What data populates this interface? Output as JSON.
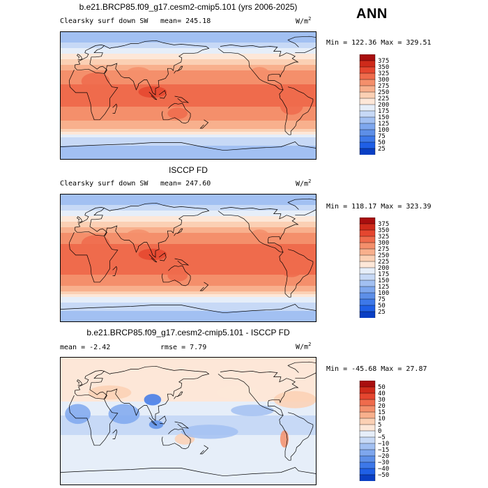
{
  "season_label": "ANN",
  "colors": {
    "abs_scale": [
      "#08306b",
      "#0a3fc4",
      "#1f5fe6",
      "#3d78e9",
      "#5d8fe8",
      "#7ea7ee",
      "#a2c0f2",
      "#c7d9f6",
      "#e6eef9",
      "#fde7d8",
      "#fbd0b4",
      "#f8b08d",
      "#f48f6b",
      "#ef6b4c",
      "#e5462f",
      "#cf2a1a",
      "#a90e0e",
      "#7a0a0a"
    ],
    "diff_scale": [
      "#08306b",
      "#0a3fc4",
      "#1f5fe6",
      "#3d78e9",
      "#5d8fe8",
      "#7ea7ee",
      "#a2c0f2",
      "#c7d9f6",
      "#e6eef9",
      "#fde7d8",
      "#fbd0b4",
      "#f8b08d",
      "#f48f6b",
      "#ef6b4c",
      "#e5462f",
      "#cf2a1a",
      "#a90e0e",
      "#7a0a0a"
    ],
    "outline": "#000000"
  },
  "panels": [
    {
      "title": "b.e21.BRCP85.f09_g17.cesm2-cmip5.101 (yrs 2006-2025)",
      "variable": "Clearsky surf down SW",
      "mean_text": "mean= 245.18",
      "units": "W/m",
      "units_sup": "2",
      "minmax_text": "Min = 122.36 Max = 329.51",
      "kind": "abs"
    },
    {
      "title": "ISCCP FD",
      "variable": "Clearsky surf down SW",
      "mean_text": "mean= 247.60",
      "units": "W/m",
      "units_sup": "2",
      "minmax_text": "Min = 118.17 Max = 323.39",
      "kind": "abs"
    },
    {
      "title": "b.e21.BRCP85.f09_g17.cesm2-cmip5.101 - ISCCP FD",
      "mean_text": "mean =  -2.42",
      "rmse_text": "rmse =   7.79",
      "units": "W/m",
      "units_sup": "2",
      "minmax_text": "Min = -45.68 Max =  27.87",
      "kind": "diff"
    }
  ],
  "chart_data": [
    {
      "type": "heatmap",
      "title": "b.e21.BRCP85.f09_g17.cesm2-cmip5.101 (yrs 2006-2025)",
      "subtitle": "Clearsky surf down SW",
      "mean": 245.18,
      "min": 122.36,
      "max": 329.51,
      "units": "W/m2",
      "colorbar_levels": [
        25,
        50,
        75,
        100,
        125,
        150,
        175,
        200,
        225,
        250,
        275,
        300,
        325,
        350,
        375
      ],
      "zonal_profile": {
        "lat": [
          90,
          75,
          60,
          45,
          30,
          15,
          0,
          -15,
          -30,
          -45,
          -60,
          -75,
          -90
        ],
        "value": [
          130,
          150,
          190,
          240,
          285,
          300,
          300,
          300,
          290,
          250,
          175,
          140,
          130
        ]
      }
    },
    {
      "type": "heatmap",
      "title": "ISCCP FD",
      "subtitle": "Clearsky surf down SW",
      "mean": 247.6,
      "min": 118.17,
      "max": 323.39,
      "units": "W/m2",
      "colorbar_levels": [
        25,
        50,
        75,
        100,
        125,
        150,
        175,
        200,
        225,
        250,
        275,
        300,
        325,
        350,
        375
      ],
      "zonal_profile": {
        "lat": [
          90,
          75,
          60,
          45,
          30,
          15,
          0,
          -15,
          -30,
          -45,
          -60,
          -75,
          -90
        ],
        "value": [
          125,
          150,
          200,
          245,
          285,
          305,
          310,
          305,
          295,
          255,
          180,
          145,
          125
        ]
      }
    },
    {
      "type": "heatmap",
      "title": "b.e21.BRCP85.f09_g17.cesm2-cmip5.101 - ISCCP FD",
      "mean": -2.42,
      "rmse": 7.79,
      "min": -45.68,
      "max": 27.87,
      "units": "W/m2",
      "colorbar_levels": [
        -50,
        -40,
        -30,
        -20,
        -15,
        -10,
        -5,
        0,
        5,
        10,
        15,
        20,
        30,
        40,
        50
      ],
      "zonal_profile": {
        "lat": [
          90,
          75,
          60,
          45,
          30,
          15,
          0,
          -15,
          -30,
          -45,
          -60,
          -75,
          -90
        ],
        "value": [
          5,
          3,
          2,
          3,
          1,
          -4,
          -6,
          -6,
          -3,
          -1,
          -2,
          -3,
          -5
        ]
      }
    }
  ]
}
